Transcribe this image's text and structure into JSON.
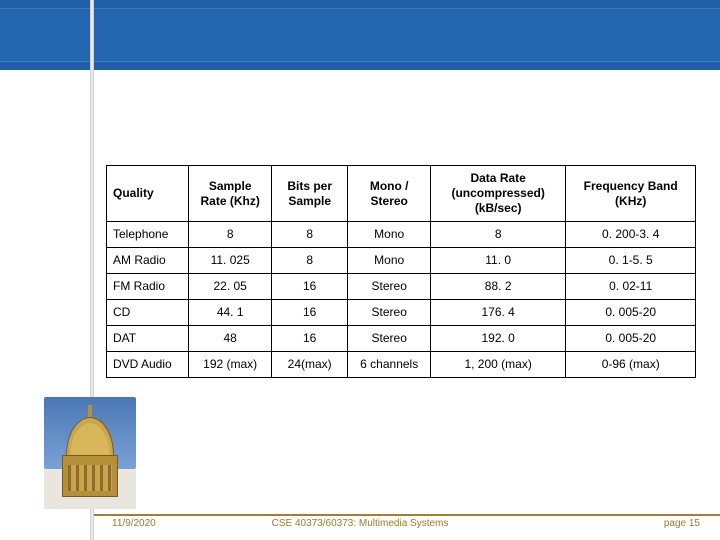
{
  "table": {
    "columns": [
      "Quality",
      "Sample Rate (Khz)",
      "Bits per Sample",
      "Mono / Stereo",
      "Data Rate (uncompressed) (kB/sec)",
      "Frequency Band (KHz)"
    ],
    "rows": [
      [
        "Telephone",
        "8",
        "8",
        "Mono",
        "8",
        "0. 200-3. 4"
      ],
      [
        "AM Radio",
        "11. 025",
        "8",
        "Mono",
        "11. 0",
        "0. 1-5. 5"
      ],
      [
        "FM Radio",
        "22. 05",
        "16",
        "Stereo",
        "88. 2",
        "0. 02-11"
      ],
      [
        "CD",
        "44. 1",
        "16",
        "Stereo",
        "176. 4",
        "0. 005-20"
      ],
      [
        "DAT",
        "48",
        "16",
        "Stereo",
        "192. 0",
        "0. 005-20"
      ],
      [
        "DVD Audio",
        "192 (max)",
        "24(max)",
        "6 channels",
        "1, 200 (max)",
        "0-96 (max)"
      ]
    ],
    "border_color": "#000000",
    "header_fontweight": "bold",
    "fontsize": 12
  },
  "footer": {
    "date": "11/9/2020",
    "center": "CSE 40373/60373: Multimedia Systems",
    "page": "page 15"
  },
  "theme": {
    "banner_color": "#1f5fa8",
    "banner_inner": "#2465af",
    "accent_rule": "#a08038",
    "footer_text": "#9a7a30"
  }
}
